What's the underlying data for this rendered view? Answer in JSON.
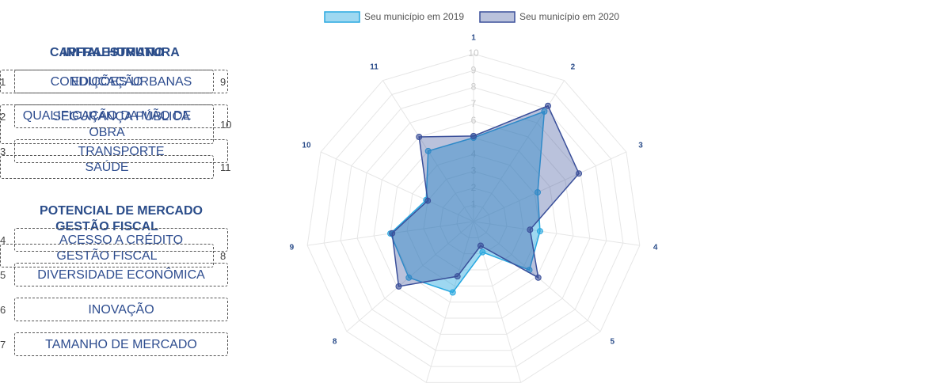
{
  "chart_data": {
    "type": "radar",
    "categories": [
      "1",
      "2",
      "3",
      "4",
      "5",
      "6",
      "7",
      "8",
      "9",
      "10",
      "11"
    ],
    "ylim": [
      0,
      10
    ],
    "yticks": [
      1,
      2,
      3,
      4,
      5,
      6,
      7,
      8,
      9,
      10
    ],
    "grid": true,
    "legend": "top",
    "series": [
      {
        "name": "Seu município em 2019",
        "color": "#29a8e0",
        "values": [
          5.0,
          7.8,
          4.2,
          4.0,
          4.4,
          1.9,
          4.4,
          5.1,
          5.0,
          3.1,
          5.0
        ]
      },
      {
        "name": "Seu município em 2020",
        "color": "#3a4f9a",
        "values": [
          5.1,
          8.2,
          6.9,
          3.4,
          5.1,
          1.5,
          3.4,
          5.9,
          4.9,
          3.0,
          6.0
        ]
      }
    ]
  },
  "panels": {
    "left": [
      {
        "title": "CAPITAL HUMANO",
        "items": [
          {
            "label": "EDUCAÇÃO",
            "number": 9
          },
          {
            "label": "QUALIFICAÇÃO DA MÃO DE OBRA",
            "number": 10
          },
          {
            "label": "SAÚDE",
            "number": 11
          }
        ]
      },
      {
        "title": "GESTÃO FISCAL",
        "items": [
          {
            "label": "GESTÃO FISCAL",
            "number": 8
          }
        ]
      }
    ],
    "right": [
      {
        "title": "INFRAESTRUTURA",
        "items": [
          {
            "label": "CONDIÇÕES URBANAS",
            "number": 1
          },
          {
            "label": "SEGURANÇA PÚBLICA",
            "number": 2
          },
          {
            "label": "TRANSPORTE",
            "number": 3
          }
        ]
      },
      {
        "title": "POTENCIAL DE MERCADO",
        "items": [
          {
            "label": "ACESSO A CRÉDITO",
            "number": 4
          },
          {
            "label": "DIVERSIDADE ECONÔMICA",
            "number": 5
          },
          {
            "label": "INOVAÇÃO",
            "number": 6
          },
          {
            "label": "TAMANHO DE MERCADO",
            "number": 7
          }
        ]
      }
    ]
  }
}
